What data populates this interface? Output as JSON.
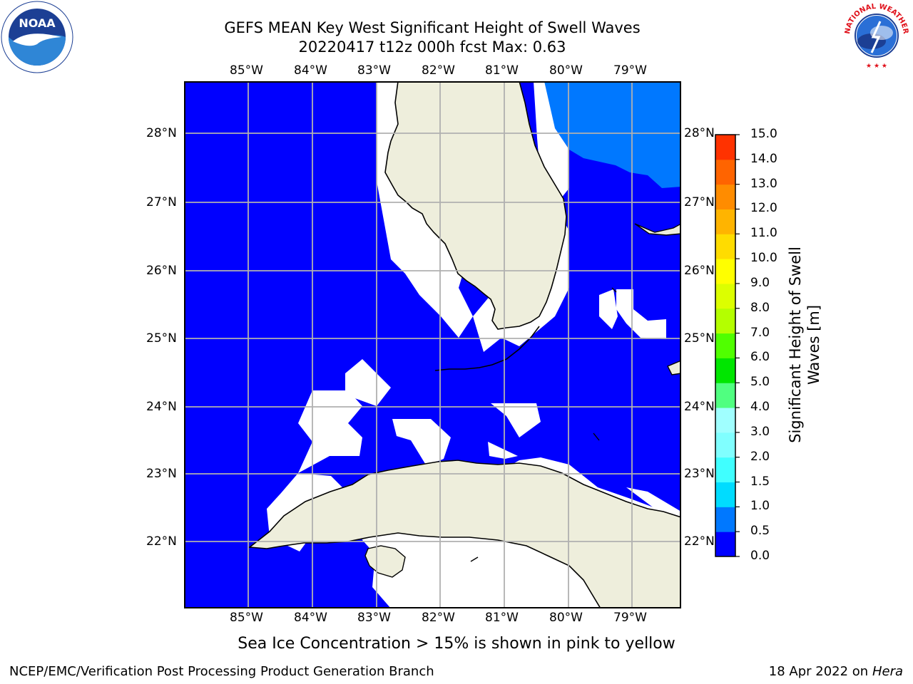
{
  "title": {
    "line1": "GEFS MEAN Key West Significant Height of Swell Waves",
    "line2": "20220417 t12z 000h fcst   Max: 0.63"
  },
  "logos": {
    "left": {
      "name": "noaa-logo",
      "text": "NOAA"
    },
    "right": {
      "name": "nws-logo",
      "text": "NATIONAL WEATHER SERVICE"
    }
  },
  "map": {
    "lon_labels": [
      "85°W",
      "84°W",
      "83°W",
      "82°W",
      "81°W",
      "80°W",
      "79°W"
    ],
    "lat_labels": [
      "28°N",
      "27°N",
      "26°N",
      "25°N",
      "24°N",
      "23°N",
      "22°N"
    ],
    "colors": {
      "ocean": "#0000ff",
      "land": "#eeeedc",
      "swell_1": "#0078ff",
      "grid": "#b0b0b0"
    }
  },
  "colorbar": {
    "label_line1": "Significant Height of Swell",
    "label_line2": "Waves [m]",
    "ticks": [
      "0.0",
      "0.5",
      "1.0",
      "1.5",
      "2.0",
      "3.0",
      "4.0",
      "5.0",
      "6.0",
      "7.0",
      "8.0",
      "9.0",
      "10.0",
      "11.0",
      "12.0",
      "13.0",
      "14.0",
      "15.0"
    ],
    "colors": [
      "#0000ff",
      "#0078ff",
      "#00dcff",
      "#40ffff",
      "#80ffff",
      "#a0ffff",
      "#50ff80",
      "#00e600",
      "#50ff00",
      "#b4ff00",
      "#dcff00",
      "#ffff00",
      "#ffdc00",
      "#ffb400",
      "#ff8c00",
      "#ff6400",
      "#ff3200"
    ]
  },
  "footer": {
    "note": "Sea Ice Concentration > 15% is shown in pink to yellow",
    "left": "NCEP/EMC/Verification Post Processing Product Generation Branch",
    "right_date": "18 Apr 2022 on ",
    "right_host": "Hera"
  }
}
